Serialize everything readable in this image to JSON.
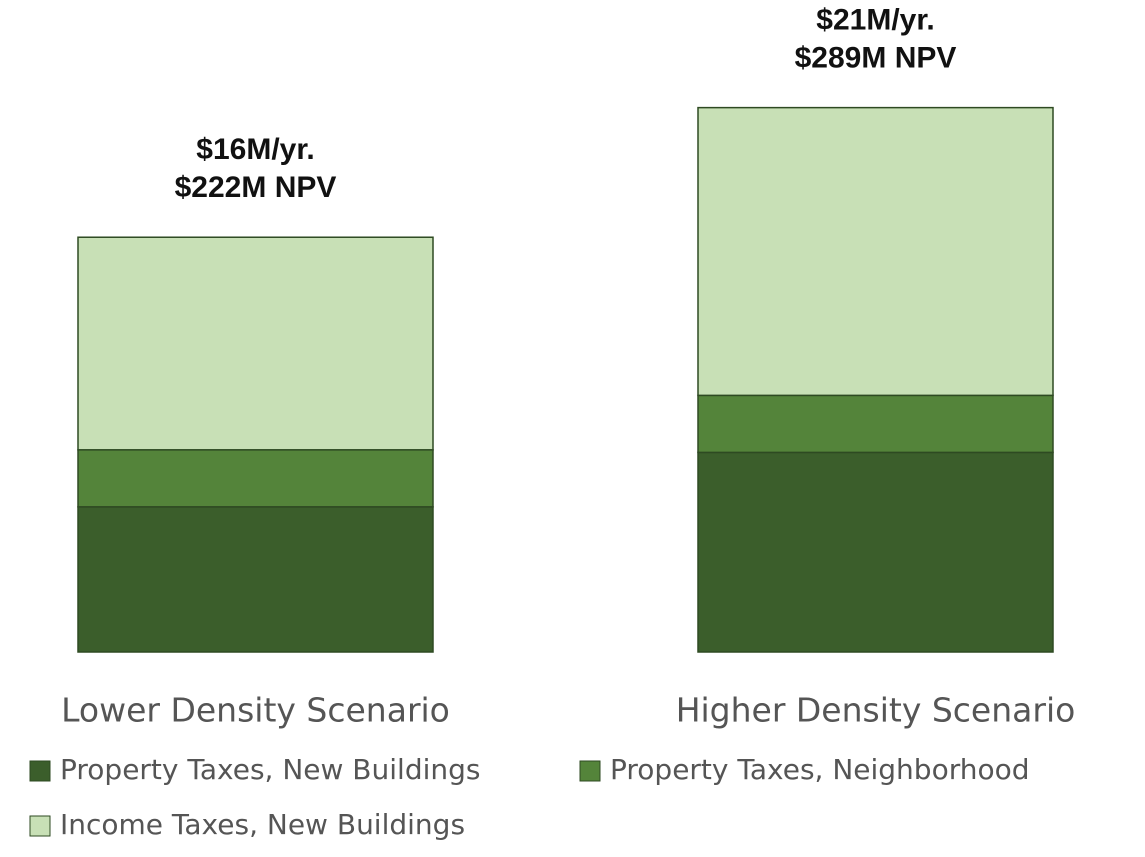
{
  "chart_data": {
    "type": "stacked-bar",
    "categories": [
      "Lower Density Scenario",
      "Higher Density Scenario"
    ],
    "series": [
      {
        "name": "Property Taxes, New Buildings",
        "color": "#3b5e2b",
        "values": [
          5.6,
          7.7
        ]
      },
      {
        "name": "Property Taxes, Neighborhood",
        "color": "#54843a",
        "values": [
          2.2,
          2.2
        ]
      },
      {
        "name": "Income Taxes, New Buildings",
        "color": "#c8e0b6",
        "values": [
          8.2,
          11.1
        ]
      }
    ],
    "annotations": [
      {
        "lines": [
          "$16M/yr.",
          "$222M NPV"
        ]
      },
      {
        "lines": [
          "$21M/yr.",
          "$289M NPV"
        ]
      }
    ],
    "ylim": [
      0,
      23.3
    ]
  }
}
